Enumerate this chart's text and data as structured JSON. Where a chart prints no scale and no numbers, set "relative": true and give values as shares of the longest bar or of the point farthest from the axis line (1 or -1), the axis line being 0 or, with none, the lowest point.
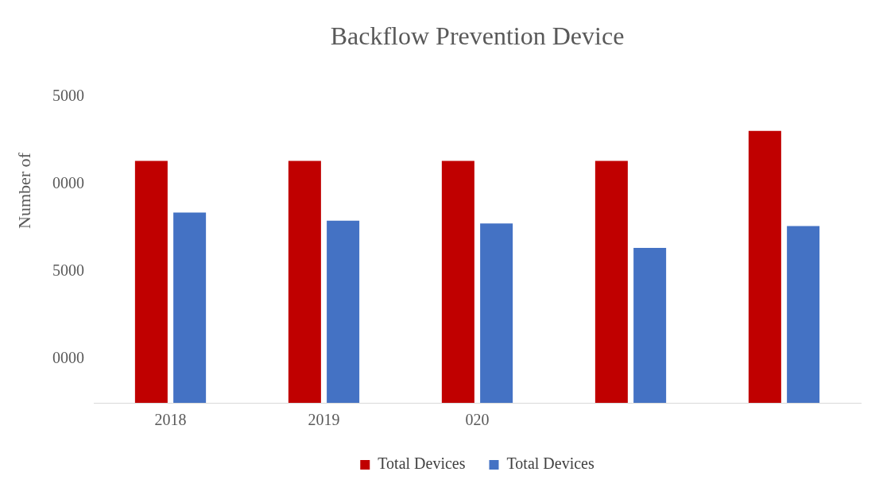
{
  "chart_data": {
    "type": "bar",
    "title": "Backflow Prevention Device",
    "ylabel": "Number of",
    "relative": true,
    "categories": [
      "2018",
      "2019",
      "020",
      null,
      null
    ],
    "series": [
      {
        "name": "Total Devices",
        "color": "#c00000",
        "values": [
          0.89,
          0.89,
          0.89,
          0.89,
          1
        ]
      },
      {
        "name": "Total Devices",
        "color": "#4472c4",
        "values": [
          0.7,
          0.67,
          0.66,
          0.57,
          0.65
        ]
      }
    ],
    "annotations": [
      "5000",
      "0000",
      "5000",
      "0000"
    ],
    "legend": "bottom"
  }
}
